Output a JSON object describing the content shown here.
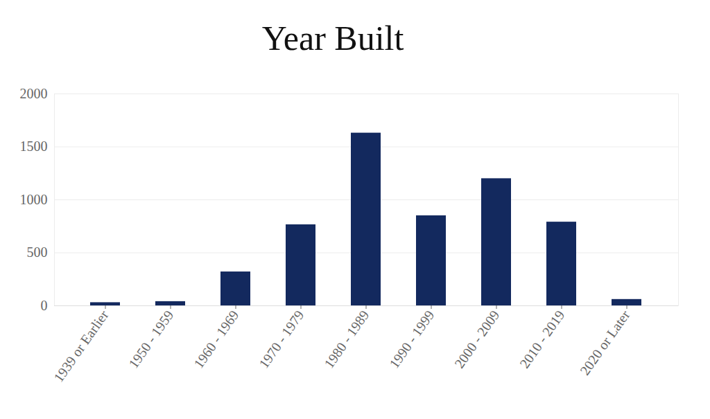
{
  "chart_data": {
    "type": "bar",
    "title": "Year Built",
    "categories": [
      "1939 or Earlier",
      "1950 - 1959",
      "1960 - 1969",
      "1970 - 1979",
      "1980 - 1989",
      "1990 - 1999",
      "2000 - 2009",
      "2010 - 2019",
      "2020 or Later"
    ],
    "values": [
      30,
      40,
      320,
      765,
      1630,
      850,
      1200,
      790,
      60
    ],
    "color": "#13295e",
    "ylim": [
      0,
      2000
    ],
    "yticks": [
      0,
      500,
      1000,
      1500,
      2000
    ],
    "grid": true
  }
}
